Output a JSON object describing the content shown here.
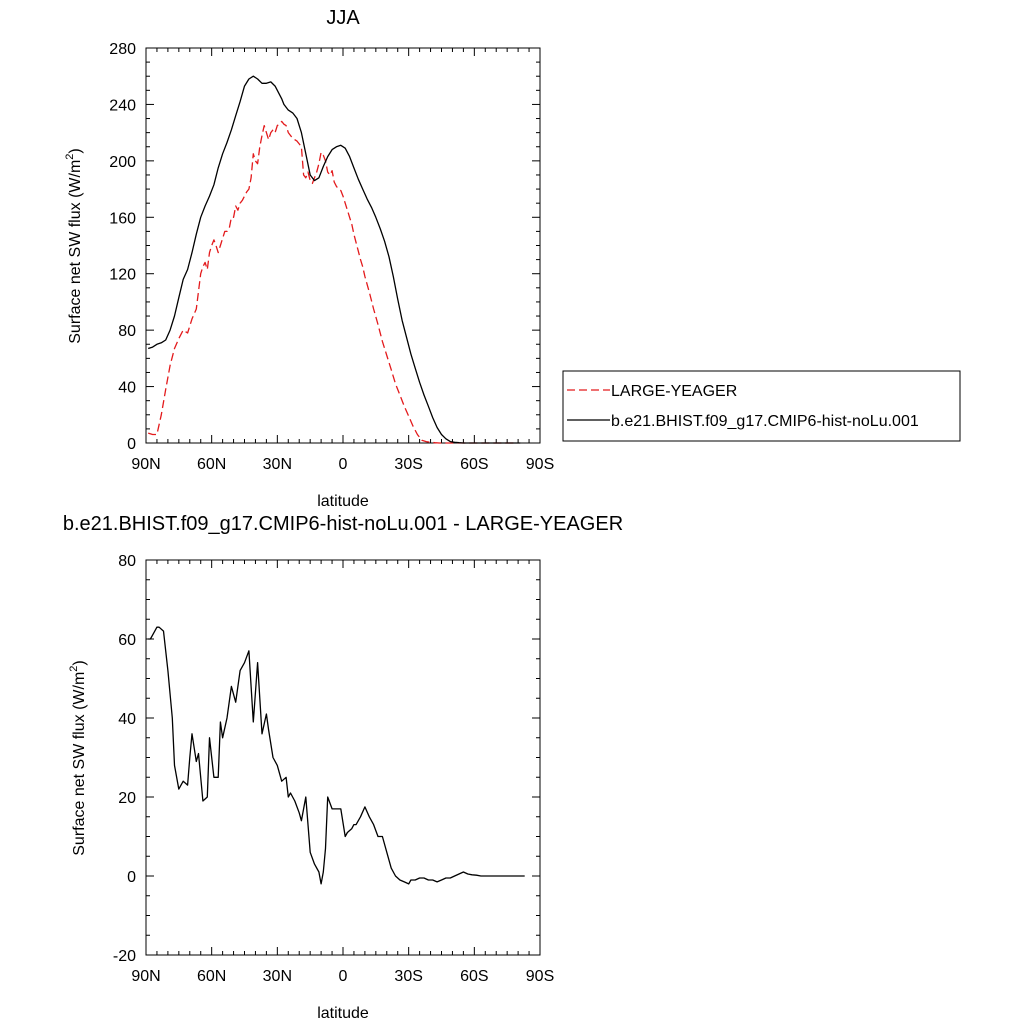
{
  "chart_data": [
    {
      "type": "line",
      "title": "JJA",
      "xlabel": "latitude",
      "ylabel": "Surface net SW flux (W/m",
      "ylabel_sup": "2",
      "ylabel_tail": ")",
      "xlim": [
        90,
        -90
      ],
      "ylim": [
        0,
        280
      ],
      "x_ticks": [
        90,
        60,
        30,
        0,
        -30,
        -60,
        -90
      ],
      "x_tick_labels": [
        "90N",
        "60N",
        "30N",
        "0",
        "30S",
        "60S",
        "90S"
      ],
      "y_ticks": [
        0,
        40,
        80,
        120,
        160,
        200,
        240,
        280
      ],
      "y_tick_labels": [
        "0",
        "40",
        "80",
        "120",
        "160",
        "200",
        "240",
        "280"
      ],
      "legend_position": "right-outside",
      "series": [
        {
          "name": "LARGE-YEAGER",
          "color": "#e31a1c",
          "dash": "dashed",
          "x": [
            89,
            87,
            85,
            83,
            81,
            79,
            77,
            75,
            73,
            71,
            69,
            67,
            65,
            64,
            63,
            62,
            61,
            60,
            59,
            58,
            57,
            56,
            55,
            54,
            53,
            52,
            51,
            50,
            49,
            48,
            47,
            46,
            45,
            44,
            43,
            42,
            41,
            40,
            39,
            38,
            37,
            36,
            35,
            34,
            33,
            32,
            31,
            30,
            29,
            28,
            27,
            26,
            25,
            24,
            23,
            22,
            21,
            20,
            19,
            18,
            17,
            16,
            15,
            14,
            13,
            12,
            11,
            10,
            9,
            8,
            7,
            6,
            5,
            4,
            3,
            2,
            1,
            0,
            -1,
            -2,
            -3,
            -4,
            -5,
            -6,
            -7,
            -8,
            -9,
            -10,
            -12,
            -14,
            -16,
            -18,
            -20,
            -22,
            -24,
            -26,
            -28,
            -30,
            -32,
            -34,
            -36,
            -38,
            -40,
            -42,
            -44,
            -46,
            -48,
            -50,
            -52,
            -54,
            -56,
            -58,
            -60,
            -62,
            -64,
            -66,
            -68,
            -70,
            -72,
            -74,
            -76,
            -78
          ],
          "y": [
            7,
            6,
            6,
            20,
            38,
            55,
            67,
            74,
            80,
            78,
            88,
            95,
            120,
            125,
            128,
            123,
            135,
            140,
            144,
            140,
            135,
            140,
            145,
            150,
            150,
            152,
            160,
            160,
            168,
            165,
            170,
            172,
            175,
            178,
            180,
            188,
            205,
            200,
            198,
            210,
            218,
            225,
            220,
            215,
            220,
            222,
            220,
            225,
            226,
            228,
            226,
            225,
            220,
            218,
            216,
            215,
            214,
            212,
            210,
            190,
            188,
            192,
            186,
            184,
            188,
            192,
            198,
            206,
            204,
            200,
            192,
            190,
            193,
            185,
            182,
            180,
            179,
            175,
            170,
            165,
            160,
            155,
            148,
            142,
            136,
            130,
            125,
            118,
            107,
            95,
            84,
            72,
            62,
            52,
            42,
            34,
            26,
            19,
            12,
            6,
            2,
            1,
            0.5,
            0.2,
            0,
            0,
            0,
            0,
            0,
            0,
            0,
            0,
            0,
            0,
            0,
            0,
            0,
            0,
            0,
            0,
            0,
            0
          ]
        },
        {
          "name": "b.e21.BHIST.f09_g17.CMIP6-hist-noLu.001",
          "color": "#000000",
          "dash": "solid",
          "x": [
            89,
            87,
            85,
            83,
            81,
            79,
            77,
            75,
            73,
            71,
            69,
            67,
            65,
            63,
            61,
            59,
            57,
            55,
            53,
            51,
            49,
            47,
            45,
            43,
            41,
            39,
            37,
            35,
            33,
            31,
            30,
            29,
            28,
            27,
            25,
            23,
            21,
            19,
            17,
            15,
            13,
            11,
            9,
            7,
            5,
            3,
            1,
            -1,
            -3,
            -5,
            -7,
            -9,
            -11,
            -13,
            -15,
            -17,
            -19,
            -21,
            -23,
            -25,
            -27,
            -29,
            -31,
            -33,
            -35,
            -37,
            -39,
            -41,
            -43,
            -45,
            -47,
            -49,
            -51,
            -53,
            -55,
            -57,
            -59,
            -61,
            -63,
            -65,
            -67,
            -69,
            -71,
            -73,
            -75,
            -77,
            -79,
            -81
          ],
          "y": [
            67,
            68,
            70,
            71,
            73,
            80,
            90,
            103,
            116,
            123,
            135,
            148,
            160,
            168,
            175,
            183,
            195,
            205,
            213,
            222,
            232,
            242,
            253,
            258,
            260,
            258,
            255,
            255,
            256,
            253,
            250,
            247,
            244,
            240,
            236,
            234,
            230,
            220,
            205,
            190,
            186,
            188,
            196,
            203,
            208,
            210,
            211,
            209,
            203,
            195,
            187,
            180,
            173,
            167,
            160,
            152,
            143,
            132,
            118,
            102,
            87,
            75,
            63,
            53,
            43,
            34,
            26,
            18,
            11,
            6,
            3,
            1,
            0.5,
            0.2,
            0,
            0,
            0,
            0,
            0,
            0,
            0,
            0,
            0,
            0,
            0,
            0,
            0,
            0
          ]
        }
      ]
    },
    {
      "type": "line",
      "title": "b.e21.BHIST.f09_g17.CMIP6-hist-noLu.001 - LARGE-YEAGER",
      "xlabel": "latitude",
      "ylabel": "Surface net SW flux (W/m",
      "ylabel_sup": "2",
      "ylabel_tail": ")",
      "xlim": [
        90,
        -90
      ],
      "ylim": [
        -20,
        80
      ],
      "x_ticks": [
        90,
        60,
        30,
        0,
        -30,
        -60,
        -90
      ],
      "x_tick_labels": [
        "90N",
        "60N",
        "30N",
        "0",
        "30S",
        "60S",
        "90S"
      ],
      "y_ticks": [
        -20,
        0,
        20,
        40,
        60,
        80
      ],
      "y_tick_labels": [
        "-20",
        "0",
        "20",
        "40",
        "60",
        "80"
      ],
      "series": [
        {
          "color": "#000000",
          "dash": "solid",
          "x": [
            89,
            88,
            86,
            85,
            84,
            82,
            80,
            78,
            77,
            75,
            73,
            71,
            70,
            69,
            67,
            66,
            64,
            62,
            61,
            59,
            57,
            56,
            55,
            53,
            51,
            49,
            47,
            45,
            43,
            41,
            39,
            38,
            37,
            35,
            34,
            32,
            30,
            28,
            26,
            25,
            24,
            22,
            20,
            19,
            17,
            15,
            13,
            11,
            10,
            9,
            8,
            7,
            5,
            3,
            1,
            -1,
            -2,
            -4,
            -5,
            -6,
            -8,
            -10,
            -12,
            -14,
            -16,
            -18,
            -20,
            -22,
            -24,
            -26,
            -28,
            -30,
            -31,
            -33,
            -35,
            -37,
            -39,
            -41,
            -43,
            -45,
            -47,
            -49,
            -51,
            -53,
            -55,
            -57,
            -59,
            -61,
            -63,
            -65,
            -67,
            -69,
            -71,
            -73,
            -75,
            -77,
            -79,
            -81,
            -83
          ],
          "y": [
            60,
            60,
            62,
            63,
            63,
            62,
            52,
            40,
            28,
            22,
            24,
            23,
            30,
            36,
            29,
            31,
            19,
            20,
            35,
            25,
            25,
            39,
            35,
            40,
            48,
            44,
            52,
            54,
            57,
            39,
            54,
            45,
            36,
            41,
            37,
            30,
            28,
            24,
            25,
            20,
            21,
            19,
            16,
            14,
            20,
            6,
            3,
            1,
            -2,
            1,
            7,
            20,
            17,
            17,
            17,
            10,
            11,
            12,
            13,
            13,
            15,
            17.5,
            15,
            13,
            10,
            10,
            6,
            2,
            0,
            -1,
            -1.5,
            -2,
            -1,
            -1,
            -0.5,
            -0.5,
            -1,
            -1,
            -1.5,
            -1,
            -0.5,
            -0.5,
            0,
            0.5,
            1,
            0.5,
            0.3,
            0.2,
            0,
            0,
            0,
            0,
            0,
            0,
            0,
            0,
            0,
            0,
            0
          ]
        }
      ]
    }
  ]
}
